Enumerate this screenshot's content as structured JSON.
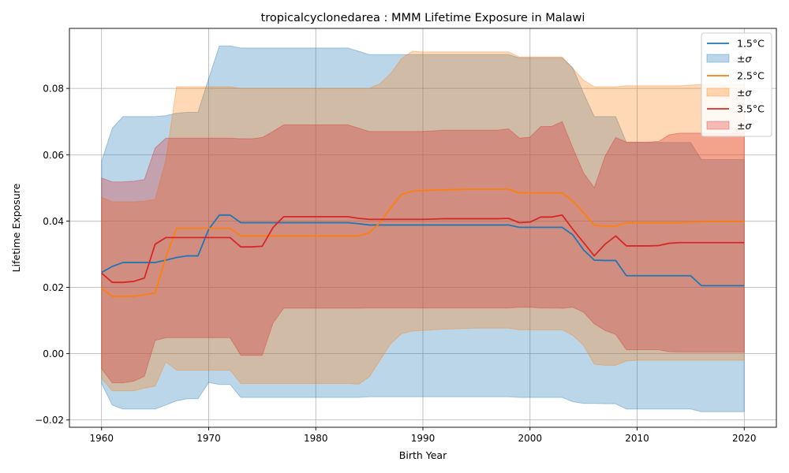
{
  "chart_data": {
    "type": "line",
    "title": "tropicalcyclonedarea : MMM Lifetime Exposure in Malawi",
    "xlabel": "Birth Year",
    "ylabel": "Lifetime Exposure",
    "xlim": [
      1957,
      2023
    ],
    "ylim": [
      -0.0222,
      0.0981
    ],
    "xticks": [
      1960,
      1970,
      1980,
      1990,
      2000,
      2010,
      2020
    ],
    "yticks": [
      -0.02,
      0.0,
      0.02,
      0.04,
      0.06,
      0.08
    ],
    "ytick_labels": [
      "−0.02",
      "0.00",
      "0.02",
      "0.04",
      "0.06",
      "0.08"
    ],
    "grid": true,
    "legend_position": "top-right",
    "x": [
      1960,
      1961,
      1962,
      1963,
      1964,
      1965,
      1966,
      1967,
      1968,
      1969,
      1970,
      1971,
      1972,
      1973,
      1974,
      1975,
      1976,
      1977,
      1978,
      1979,
      1980,
      1981,
      1982,
      1983,
      1984,
      1985,
      1986,
      1987,
      1988,
      1989,
      1990,
      1991,
      1992,
      1993,
      1994,
      1995,
      1996,
      1997,
      1998,
      1999,
      2000,
      2001,
      2002,
      2003,
      2004,
      2005,
      2006,
      2007,
      2008,
      2009,
      2010,
      2011,
      2012,
      2013,
      2014,
      2015,
      2016,
      2017,
      2018,
      2019,
      2020
    ],
    "series": [
      {
        "name": "1.5°C",
        "band_label": "±σ",
        "color": "#1f77b4",
        "mean": [
          0.0245,
          0.0263,
          0.0275,
          0.0275,
          0.0275,
          0.0275,
          0.0282,
          0.029,
          0.0295,
          0.0295,
          0.0375,
          0.0418,
          0.0418,
          0.0395,
          0.0395,
          0.0395,
          0.0395,
          0.0395,
          0.0395,
          0.0395,
          0.0395,
          0.0395,
          0.0395,
          0.0395,
          0.0392,
          0.0388,
          0.0388,
          0.0388,
          0.0388,
          0.0388,
          0.0388,
          0.0388,
          0.0388,
          0.0388,
          0.0388,
          0.0388,
          0.0388,
          0.0388,
          0.0388,
          0.0381,
          0.0381,
          0.0381,
          0.0381,
          0.0381,
          0.0358,
          0.0313,
          0.0282,
          0.0281,
          0.0281,
          0.0235,
          0.0235,
          0.0235,
          0.0235,
          0.0235,
          0.0235,
          0.0235,
          0.0205,
          0.0205,
          0.0205,
          0.0205,
          0.0205
        ],
        "upper": [
          0.058,
          0.068,
          0.0715,
          0.0715,
          0.0715,
          0.0715,
          0.0718,
          0.0725,
          0.0728,
          0.0728,
          0.083,
          0.0928,
          0.0928,
          0.0922,
          0.0922,
          0.0922,
          0.0922,
          0.0922,
          0.0922,
          0.0922,
          0.0922,
          0.0922,
          0.0922,
          0.0922,
          0.0912,
          0.0902,
          0.0902,
          0.0902,
          0.0902,
          0.0902,
          0.0902,
          0.0902,
          0.0902,
          0.0902,
          0.0902,
          0.0902,
          0.0902,
          0.0902,
          0.0902,
          0.0892,
          0.0892,
          0.0892,
          0.0892,
          0.0892,
          0.0862,
          0.0785,
          0.0715,
          0.0715,
          0.0715,
          0.0637,
          0.0637,
          0.0637,
          0.0637,
          0.0637,
          0.0637,
          0.0637,
          0.0585,
          0.0585,
          0.0585,
          0.0585,
          0.0585
        ],
        "lower": [
          -0.009,
          -0.0155,
          -0.0167,
          -0.0167,
          -0.0167,
          -0.0167,
          -0.0155,
          -0.0142,
          -0.0136,
          -0.0136,
          -0.0087,
          -0.0093,
          -0.0093,
          -0.0132,
          -0.0132,
          -0.0132,
          -0.0132,
          -0.0132,
          -0.0132,
          -0.0132,
          -0.0132,
          -0.0132,
          -0.0132,
          -0.0132,
          -0.0132,
          -0.013,
          -0.013,
          -0.013,
          -0.013,
          -0.013,
          -0.013,
          -0.013,
          -0.013,
          -0.013,
          -0.013,
          -0.013,
          -0.013,
          -0.013,
          -0.013,
          -0.0132,
          -0.0132,
          -0.0132,
          -0.0132,
          -0.0132,
          -0.0145,
          -0.015,
          -0.015,
          -0.0151,
          -0.0151,
          -0.0167,
          -0.0167,
          -0.0167,
          -0.0167,
          -0.0167,
          -0.0167,
          -0.0167,
          -0.0175,
          -0.0175,
          -0.0175,
          -0.0175,
          -0.0175
        ]
      },
      {
        "name": "2.5°C",
        "band_label": "±σ",
        "color": "#ff7f0e",
        "mean": [
          0.0197,
          0.0173,
          0.0173,
          0.0173,
          0.0178,
          0.0183,
          0.029,
          0.0378,
          0.0378,
          0.0378,
          0.0378,
          0.0378,
          0.0378,
          0.0355,
          0.0355,
          0.0355,
          0.0355,
          0.0355,
          0.0355,
          0.0355,
          0.0355,
          0.0355,
          0.0355,
          0.0355,
          0.0355,
          0.0365,
          0.0395,
          0.044,
          0.048,
          0.049,
          0.0492,
          0.0493,
          0.0494,
          0.0495,
          0.0496,
          0.0496,
          0.0496,
          0.0496,
          0.0496,
          0.0485,
          0.0485,
          0.0485,
          0.0485,
          0.0485,
          0.046,
          0.0425,
          0.0387,
          0.0385,
          0.0385,
          0.0395,
          0.0395,
          0.0395,
          0.0395,
          0.0395,
          0.0395,
          0.0397,
          0.0398,
          0.0398,
          0.0398,
          0.0398,
          0.0398
        ],
        "upper": [
          0.0472,
          0.0458,
          0.0458,
          0.0458,
          0.046,
          0.0465,
          0.0585,
          0.0805,
          0.0805,
          0.0805,
          0.0805,
          0.0805,
          0.0805,
          0.08,
          0.08,
          0.08,
          0.08,
          0.08,
          0.08,
          0.08,
          0.08,
          0.08,
          0.08,
          0.08,
          0.08,
          0.08,
          0.0815,
          0.0845,
          0.089,
          0.0912,
          0.091,
          0.091,
          0.091,
          0.091,
          0.091,
          0.091,
          0.091,
          0.091,
          0.091,
          0.0895,
          0.0895,
          0.0895,
          0.0895,
          0.0895,
          0.086,
          0.0825,
          0.0805,
          0.0805,
          0.0805,
          0.0808,
          0.0808,
          0.0808,
          0.0808,
          0.0808,
          0.0808,
          0.081,
          0.0812,
          0.0812,
          0.0812,
          0.0812,
          0.0812
        ],
        "lower": [
          -0.0075,
          -0.0112,
          -0.0112,
          -0.0112,
          -0.0104,
          -0.0098,
          -0.0025,
          -0.005,
          -0.005,
          -0.005,
          -0.005,
          -0.005,
          -0.005,
          -0.009,
          -0.009,
          -0.009,
          -0.009,
          -0.009,
          -0.009,
          -0.009,
          -0.009,
          -0.009,
          -0.009,
          -0.009,
          -0.0092,
          -0.007,
          -0.002,
          0.003,
          0.006,
          0.0068,
          0.007,
          0.0072,
          0.0074,
          0.0075,
          0.0076,
          0.0077,
          0.0077,
          0.0077,
          0.0077,
          0.0072,
          0.0072,
          0.0072,
          0.0072,
          0.0072,
          0.0055,
          0.0025,
          -0.0032,
          -0.0035,
          -0.0035,
          -0.0022,
          -0.002,
          -0.002,
          -0.002,
          -0.002,
          -0.002,
          -0.002,
          -0.002,
          -0.002,
          -0.002,
          -0.002,
          -0.002
        ]
      },
      {
        "name": "3.5°C",
        "band_label": "±σ",
        "color": "#d62728",
        "mean": [
          0.0243,
          0.0215,
          0.0215,
          0.0218,
          0.0228,
          0.033,
          0.035,
          0.035,
          0.035,
          0.035,
          0.035,
          0.035,
          0.035,
          0.0322,
          0.0322,
          0.0324,
          0.038,
          0.0413,
          0.0413,
          0.0413,
          0.0413,
          0.0413,
          0.0413,
          0.0413,
          0.0408,
          0.0405,
          0.0405,
          0.0405,
          0.0405,
          0.0405,
          0.0405,
          0.0406,
          0.0407,
          0.0407,
          0.0407,
          0.0407,
          0.0407,
          0.0407,
          0.0408,
          0.0395,
          0.0397,
          0.0412,
          0.0412,
          0.0418,
          0.0375,
          0.0335,
          0.0295,
          0.033,
          0.0355,
          0.0325,
          0.0325,
          0.0325,
          0.0326,
          0.0333,
          0.0335,
          0.0335,
          0.0335,
          0.0335,
          0.0335,
          0.0335,
          0.0335
        ],
        "upper": [
          0.053,
          0.0518,
          0.0518,
          0.052,
          0.0525,
          0.062,
          0.065,
          0.065,
          0.065,
          0.065,
          0.065,
          0.065,
          0.065,
          0.0648,
          0.0648,
          0.0652,
          0.067,
          0.069,
          0.069,
          0.069,
          0.069,
          0.069,
          0.069,
          0.069,
          0.068,
          0.067,
          0.067,
          0.067,
          0.067,
          0.067,
          0.067,
          0.0672,
          0.0674,
          0.0674,
          0.0674,
          0.0674,
          0.0674,
          0.0674,
          0.0678,
          0.065,
          0.0653,
          0.0685,
          0.0685,
          0.07,
          0.062,
          0.0545,
          0.05,
          0.0595,
          0.0652,
          0.0638,
          0.0638,
          0.0638,
          0.064,
          0.066,
          0.0665,
          0.0665,
          0.0665,
          0.0665,
          0.0665,
          0.0665,
          0.0665
        ],
        "lower": [
          -0.0045,
          -0.0088,
          -0.0088,
          -0.0083,
          -0.0068,
          0.004,
          0.0048,
          0.0048,
          0.0048,
          0.0048,
          0.0048,
          0.0048,
          0.0048,
          -0.0005,
          -0.0005,
          -0.0005,
          0.0092,
          0.0137,
          0.0137,
          0.0137,
          0.0137,
          0.0137,
          0.0137,
          0.0137,
          0.0137,
          0.0138,
          0.0138,
          0.0138,
          0.0138,
          0.0138,
          0.0138,
          0.0138,
          0.0138,
          0.0138,
          0.0138,
          0.0138,
          0.0138,
          0.0138,
          0.0138,
          0.014,
          0.014,
          0.0138,
          0.0138,
          0.0137,
          0.014,
          0.0125,
          0.009,
          0.007,
          0.0058,
          0.0012,
          0.0012,
          0.0012,
          0.0012,
          0.0006,
          0.0005,
          0.0005,
          0.0005,
          0.0005,
          0.0005,
          0.0005,
          0.0005
        ]
      }
    ]
  }
}
